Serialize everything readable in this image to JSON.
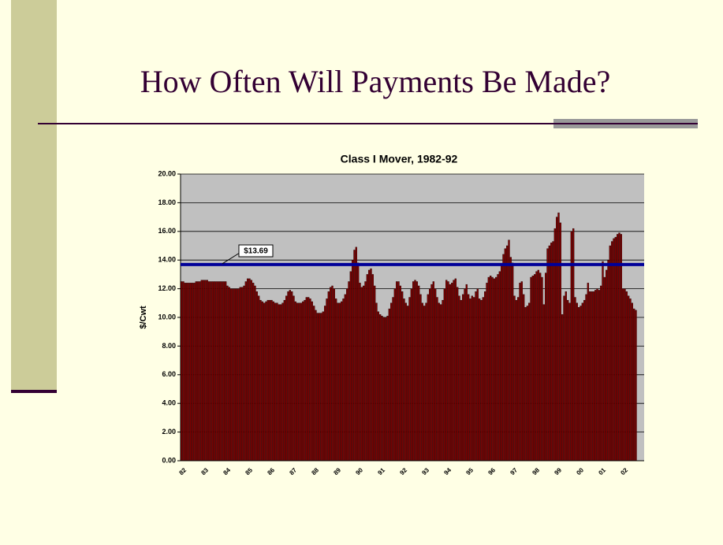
{
  "slide_title": "How Often Will Payments Be Made?",
  "chart_data": {
    "type": "bar",
    "title": "Class I Mover, 1982-92",
    "ylabel": "$/Cwt",
    "color": "#800000",
    "grid": true,
    "ylim": [
      0,
      20
    ],
    "yticks": [
      {
        "value": 0,
        "label": "0.00"
      },
      {
        "value": 2,
        "label": "2.00"
      },
      {
        "value": 4,
        "label": "4.00"
      },
      {
        "value": 6,
        "label": "6.00"
      },
      {
        "value": 8,
        "label": "8.00"
      },
      {
        "value": 10,
        "label": "10.00"
      },
      {
        "value": 12,
        "label": "12.00"
      },
      {
        "value": 14,
        "label": "14.00"
      },
      {
        "value": 16,
        "label": "16.00"
      },
      {
        "value": 18,
        "label": "18.00"
      },
      {
        "value": 20,
        "label": "20.00"
      }
    ],
    "reference_line": {
      "value": 13.69,
      "label": "$13.69",
      "color": "#000099"
    },
    "categories": [
      "82",
      null,
      null,
      null,
      null,
      null,
      null,
      null,
      null,
      null,
      null,
      null,
      "83",
      null,
      null,
      null,
      null,
      null,
      null,
      null,
      null,
      null,
      null,
      null,
      "84",
      null,
      null,
      null,
      null,
      null,
      null,
      null,
      null,
      null,
      null,
      null,
      "85",
      null,
      null,
      null,
      null,
      null,
      null,
      null,
      null,
      null,
      null,
      null,
      "86",
      null,
      null,
      null,
      null,
      null,
      null,
      null,
      null,
      null,
      null,
      null,
      "87",
      null,
      null,
      null,
      null,
      null,
      null,
      null,
      null,
      null,
      null,
      null,
      "88",
      null,
      null,
      null,
      null,
      null,
      null,
      null,
      null,
      null,
      null,
      null,
      "89",
      null,
      null,
      null,
      null,
      null,
      null,
      null,
      null,
      null,
      null,
      null,
      "90",
      null,
      null,
      null,
      null,
      null,
      null,
      null,
      null,
      null,
      null,
      null,
      "91",
      null,
      null,
      null,
      null,
      null,
      null,
      null,
      null,
      null,
      null,
      null,
      "92",
      null,
      null,
      null,
      null,
      null,
      null,
      null,
      null,
      null,
      null,
      null,
      "93",
      null,
      null,
      null,
      null,
      null,
      null,
      null,
      null,
      null,
      null,
      null,
      "94",
      null,
      null,
      null,
      null,
      null,
      null,
      null,
      null,
      null,
      null,
      null,
      "95",
      null,
      null,
      null,
      null,
      null,
      null,
      null,
      null,
      null,
      null,
      null,
      "96",
      null,
      null,
      null,
      null,
      null,
      null,
      null,
      null,
      null,
      null,
      null,
      "97",
      null,
      null,
      null,
      null,
      null,
      null,
      null,
      null,
      null,
      null,
      null,
      "98",
      null,
      null,
      null,
      null,
      null,
      null,
      null,
      null,
      null,
      null,
      null,
      "99",
      null,
      null,
      null,
      null,
      null,
      null,
      null,
      null,
      null,
      null,
      null,
      "00",
      null,
      null,
      null,
      null,
      null,
      null,
      null,
      null,
      null,
      null,
      null,
      "01",
      null,
      null,
      null,
      null,
      null,
      null,
      null,
      null,
      null,
      null,
      null,
      "02",
      null,
      null,
      null,
      null,
      null,
      null,
      null
    ],
    "values": [
      12.5,
      12.5,
      12.4,
      12.4,
      12.4,
      12.4,
      12.4,
      12.4,
      12.5,
      12.5,
      12.5,
      12.6,
      12.6,
      12.6,
      12.6,
      12.5,
      12.5,
      12.5,
      12.5,
      12.5,
      12.5,
      12.5,
      12.5,
      12.5,
      12.5,
      12.2,
      12.1,
      12.0,
      12.0,
      12.0,
      12.0,
      12.0,
      12.1,
      12.1,
      12.2,
      12.5,
      12.7,
      12.7,
      12.6,
      12.4,
      12.2,
      11.8,
      11.5,
      11.2,
      11.1,
      11.0,
      11.1,
      11.2,
      11.2,
      11.2,
      11.1,
      11.0,
      11.0,
      10.9,
      10.9,
      11.0,
      11.2,
      11.5,
      11.8,
      11.9,
      11.8,
      11.5,
      11.1,
      11.0,
      11.0,
      11.0,
      11.1,
      11.2,
      11.4,
      11.4,
      11.3,
      11.1,
      10.8,
      10.5,
      10.3,
      10.3,
      10.3,
      10.4,
      10.8,
      11.3,
      11.8,
      12.1,
      12.2,
      12.0,
      11.3,
      11.0,
      11.0,
      11.1,
      11.3,
      11.6,
      12.0,
      12.5,
      13.2,
      14.0,
      14.7,
      14.9,
      13.8,
      12.4,
      12.1,
      12.2,
      12.5,
      13.0,
      13.3,
      13.4,
      13.0,
      12.2,
      11.0,
      10.4,
      10.2,
      10.1,
      10.0,
      10.0,
      10.1,
      10.6,
      11.0,
      11.4,
      12.0,
      12.5,
      12.5,
      12.2,
      11.8,
      11.3,
      11.0,
      10.8,
      11.4,
      12.0,
      12.5,
      12.6,
      12.5,
      12.2,
      11.6,
      11.0,
      10.8,
      11.0,
      11.6,
      12.0,
      12.3,
      12.5,
      12.0,
      11.4,
      11.0,
      10.9,
      11.2,
      12.0,
      12.6,
      12.5,
      12.3,
      12.4,
      12.6,
      12.7,
      12.1,
      11.5,
      11.2,
      11.6,
      12.0,
      12.3,
      11.6,
      11.3,
      11.5,
      11.4,
      11.8,
      12.0,
      11.3,
      11.2,
      11.4,
      11.8,
      12.4,
      12.8,
      12.9,
      12.8,
      12.7,
      12.8,
      13.0,
      13.2,
      13.7,
      14.4,
      14.8,
      15.0,
      15.4,
      14.2,
      13.8,
      11.5,
      11.2,
      11.4,
      12.4,
      12.5,
      11.6,
      10.7,
      10.8,
      11.0,
      12.8,
      12.9,
      13.0,
      13.2,
      13.3,
      13.1,
      12.8,
      10.9,
      13.1,
      14.8,
      15.0,
      15.2,
      15.3,
      16.2,
      17.0,
      17.3,
      16.6,
      10.2,
      11.5,
      11.8,
      11.2,
      11.0,
      16.0,
      16.2,
      11.4,
      11.0,
      10.7,
      10.8,
      11.0,
      11.2,
      11.6,
      12.4,
      11.8,
      11.8,
      11.8,
      11.9,
      12.0,
      11.9,
      12.2,
      13.9,
      12.8,
      13.3,
      14.0,
      15.0,
      15.3,
      15.5,
      15.6,
      15.8,
      15.9,
      15.8,
      12.0,
      12.0,
      11.8,
      11.5,
      11.3,
      11.0,
      10.6,
      10.5
    ]
  }
}
